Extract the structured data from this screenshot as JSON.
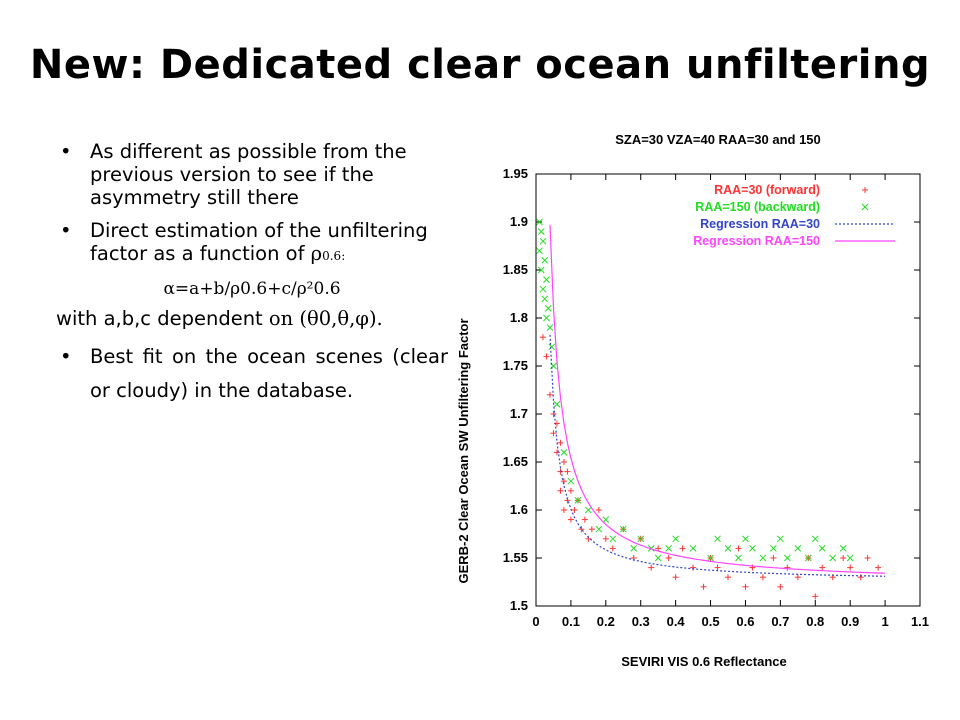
{
  "slide": {
    "title": "New: Dedicated clear ocean unfiltering",
    "bullet1": "As different as possible from the previous version to see if the asymmetry still there",
    "bullet2_text": "Direct estimation of the unfiltering factor as a function of",
    "bullet2_rho": "ρ",
    "bullet2_sub": "0.6:",
    "formula": "α=a+b/ρ0.6+c/ρ²0.6",
    "dependence": "with a,b,c dependent",
    "dependence_tail": "on (θ0,θ,φ).",
    "bullet3": "Best fit on the ocean scenes (clear or cloudy) in the database."
  },
  "chart_data": {
    "type": "scatter",
    "title": "SZA=30  VZA=40  RAA=30  and 150",
    "xlabel": "SEVIRI VIS 0.6 Reflectance",
    "ylabel": "GERB-2 Clear Ocean SW Unfiltering Factor",
    "xlim": [
      0,
      1.1
    ],
    "ylim": [
      1.5,
      1.95
    ],
    "xticks": [
      "0",
      "0.1",
      "0.2",
      "0.3",
      "0.4",
      "0.5",
      "0.6",
      "0.7",
      "0.8",
      "0.9",
      "1",
      "1.1"
    ],
    "yticks": [
      "1.5",
      "1.55",
      "1.6",
      "1.65",
      "1.7",
      "1.75",
      "1.8",
      "1.85",
      "1.9",
      "1.95"
    ],
    "legend_position": "top-right",
    "series": [
      {
        "name": "RAA=30  (forward)",
        "marker": "+",
        "color": "#ff3333",
        "x": [
          0.02,
          0.03,
          0.04,
          0.05,
          0.05,
          0.06,
          0.06,
          0.07,
          0.07,
          0.07,
          0.08,
          0.08,
          0.08,
          0.09,
          0.09,
          0.1,
          0.1,
          0.11,
          0.12,
          0.13,
          0.14,
          0.15,
          0.16,
          0.18,
          0.2,
          0.22,
          0.25,
          0.28,
          0.3,
          0.33,
          0.35,
          0.38,
          0.4,
          0.42,
          0.45,
          0.48,
          0.5,
          0.52,
          0.55,
          0.58,
          0.6,
          0.62,
          0.65,
          0.68,
          0.7,
          0.72,
          0.75,
          0.78,
          0.8,
          0.82,
          0.85,
          0.88,
          0.9,
          0.93,
          0.95,
          0.98
        ],
        "y": [
          1.78,
          1.76,
          1.72,
          1.7,
          1.68,
          1.69,
          1.66,
          1.67,
          1.64,
          1.62,
          1.65,
          1.63,
          1.6,
          1.64,
          1.61,
          1.62,
          1.59,
          1.6,
          1.61,
          1.58,
          1.59,
          1.57,
          1.58,
          1.6,
          1.57,
          1.56,
          1.58,
          1.55,
          1.57,
          1.54,
          1.56,
          1.55,
          1.53,
          1.56,
          1.54,
          1.52,
          1.55,
          1.54,
          1.53,
          1.56,
          1.52,
          1.54,
          1.53,
          1.55,
          1.52,
          1.54,
          1.53,
          1.55,
          1.51,
          1.54,
          1.53,
          1.55,
          1.54,
          1.53,
          1.55,
          1.54
        ]
      },
      {
        "name": "RAA=150  (backward)",
        "marker": "x",
        "color": "#22dd22",
        "x": [
          0.01,
          0.01,
          0.015,
          0.015,
          0.02,
          0.02,
          0.025,
          0.025,
          0.03,
          0.03,
          0.035,
          0.04,
          0.045,
          0.05,
          0.06,
          0.08,
          0.1,
          0.12,
          0.15,
          0.18,
          0.2,
          0.22,
          0.25,
          0.28,
          0.3,
          0.33,
          0.35,
          0.38,
          0.4,
          0.45,
          0.5,
          0.52,
          0.55,
          0.58,
          0.6,
          0.62,
          0.65,
          0.68,
          0.7,
          0.72,
          0.75,
          0.78,
          0.8,
          0.82,
          0.85,
          0.88,
          0.9
        ],
        "y": [
          1.9,
          1.87,
          1.89,
          1.85,
          1.88,
          1.83,
          1.86,
          1.82,
          1.84,
          1.8,
          1.81,
          1.79,
          1.77,
          1.75,
          1.71,
          1.66,
          1.63,
          1.61,
          1.6,
          1.58,
          1.59,
          1.57,
          1.58,
          1.56,
          1.57,
          1.56,
          1.55,
          1.56,
          1.57,
          1.56,
          1.55,
          1.57,
          1.56,
          1.55,
          1.57,
          1.56,
          1.55,
          1.56,
          1.57,
          1.55,
          1.56,
          1.55,
          1.57,
          1.56,
          1.55,
          1.56,
          1.55
        ]
      },
      {
        "name": "Regression RAA=30",
        "marker": "line",
        "color": "#3344cc",
        "style": "dotted",
        "a": 1.525,
        "b": 0.0058,
        "c": 0.00018
      },
      {
        "name": "Regression RAA=150",
        "marker": "line",
        "color": "#ff44ff",
        "style": "solid",
        "a": 1.522,
        "b": 0.012,
        "c": 0.00012
      }
    ]
  }
}
